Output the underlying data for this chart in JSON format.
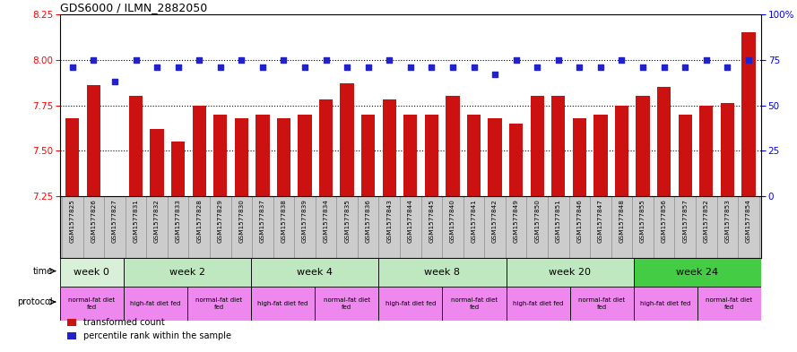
{
  "title": "GDS6000 / ILMN_2882050",
  "samples": [
    "GSM1577825",
    "GSM1577826",
    "GSM1577827",
    "GSM1577831",
    "GSM1577832",
    "GSM1577833",
    "GSM1577828",
    "GSM1577829",
    "GSM1577830",
    "GSM1577837",
    "GSM1577838",
    "GSM1577839",
    "GSM1577834",
    "GSM1577835",
    "GSM1577836",
    "GSM1577843",
    "GSM1577844",
    "GSM1577845",
    "GSM1577840",
    "GSM1577841",
    "GSM1577842",
    "GSM1577849",
    "GSM1577850",
    "GSM1577851",
    "GSM1577846",
    "GSM1577847",
    "GSM1577848",
    "GSM1577855",
    "GSM1577856",
    "GSM1577857",
    "GSM1577852",
    "GSM1577853",
    "GSM1577854"
  ],
  "red_values": [
    7.68,
    7.86,
    7.245,
    7.8,
    7.62,
    7.55,
    7.75,
    7.7,
    7.68,
    7.7,
    7.68,
    7.7,
    7.78,
    7.87,
    7.7,
    7.78,
    7.7,
    7.7,
    7.8,
    7.7,
    7.68,
    7.65,
    7.8,
    7.8,
    7.68,
    7.7,
    7.75,
    7.8,
    7.85,
    7.7,
    7.75,
    7.76,
    8.15
  ],
  "blue_values": [
    71,
    75,
    63,
    75,
    71,
    71,
    75,
    71,
    75,
    71,
    75,
    71,
    75,
    71,
    71,
    75,
    71,
    71,
    71,
    71,
    67,
    75,
    71,
    75,
    71,
    71,
    75,
    71,
    71,
    71,
    75,
    71,
    75
  ],
  "ylim_left": [
    7.25,
    8.25
  ],
  "ylim_right": [
    0,
    100
  ],
  "yticks_left": [
    7.25,
    7.5,
    7.75,
    8.0,
    8.25
  ],
  "yticks_right": [
    0,
    25,
    50,
    75,
    100
  ],
  "bar_color": "#cc1111",
  "dot_color": "#2222cc",
  "time_groups": [
    {
      "label": "week 0",
      "start": 0,
      "end": 3,
      "color": "#d8f0d8"
    },
    {
      "label": "week 2",
      "start": 3,
      "end": 9,
      "color": "#c0e8c0"
    },
    {
      "label": "week 4",
      "start": 9,
      "end": 15,
      "color": "#c0e8c0"
    },
    {
      "label": "week 8",
      "start": 15,
      "end": 21,
      "color": "#c0e8c0"
    },
    {
      "label": "week 20",
      "start": 21,
      "end": 27,
      "color": "#c0e8c0"
    },
    {
      "label": "week 24",
      "start": 27,
      "end": 33,
      "color": "#44cc44"
    }
  ],
  "protocol_groups": [
    {
      "label": "normal-fat diet\nfed",
      "start": 0,
      "end": 3
    },
    {
      "label": "high-fat diet fed",
      "start": 3,
      "end": 6
    },
    {
      "label": "normal-fat diet\nfed",
      "start": 6,
      "end": 9
    },
    {
      "label": "high-fat diet fed",
      "start": 9,
      "end": 12
    },
    {
      "label": "normal-fat diet\nfed",
      "start": 12,
      "end": 15
    },
    {
      "label": "high-fat diet fed",
      "start": 15,
      "end": 18
    },
    {
      "label": "normal-fat diet\nfed",
      "start": 18,
      "end": 21
    },
    {
      "label": "high-fat diet fed",
      "start": 21,
      "end": 24
    },
    {
      "label": "normal-fat diet\nfed",
      "start": 24,
      "end": 27
    },
    {
      "label": "high-fat diet fed",
      "start": 27,
      "end": 30
    },
    {
      "label": "normal-fat diet\nfed",
      "start": 30,
      "end": 33
    }
  ],
  "protocol_color": "#ee88ee",
  "legend_red": "transformed count",
  "legend_blue": "percentile rank within the sample",
  "time_label": "time",
  "protocol_label": "protocol",
  "xtick_bg": "#cccccc"
}
